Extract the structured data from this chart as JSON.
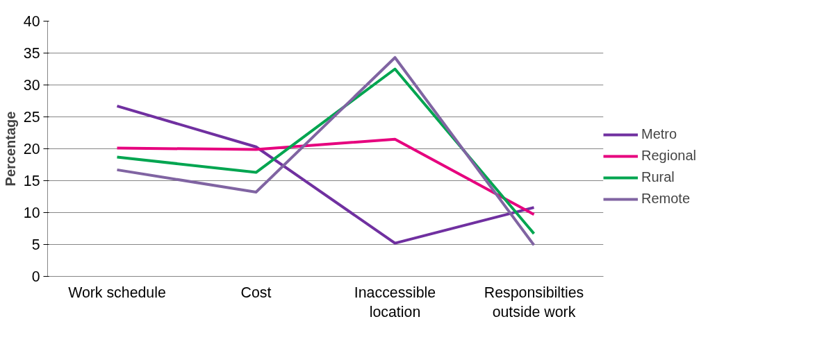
{
  "chart_data": {
    "type": "line",
    "ylabel": "Percentage",
    "categories": [
      "Work schedule",
      "Cost",
      "Inaccessible location",
      "Responsibilties outside work"
    ],
    "series": [
      {
        "name": "Metro",
        "color": "#7030a0",
        "values": [
          26.7,
          20.3,
          5.2,
          10.8
        ]
      },
      {
        "name": "Regional",
        "color": "#e6007e",
        "values": [
          20.1,
          19.9,
          21.5,
          9.7
        ]
      },
      {
        "name": "Rural",
        "color": "#00a550",
        "values": [
          18.7,
          16.3,
          32.5,
          6.7
        ]
      },
      {
        "name": "Remote",
        "color": "#8064a2",
        "values": [
          16.7,
          13.2,
          34.3,
          4.9
        ]
      }
    ],
    "ylim": [
      0,
      40
    ],
    "yticks": [
      0,
      5,
      10,
      15,
      20,
      25,
      30,
      35,
      40
    ],
    "grid": "y",
    "legend": "right",
    "marker": "none",
    "line_style": "solid"
  }
}
